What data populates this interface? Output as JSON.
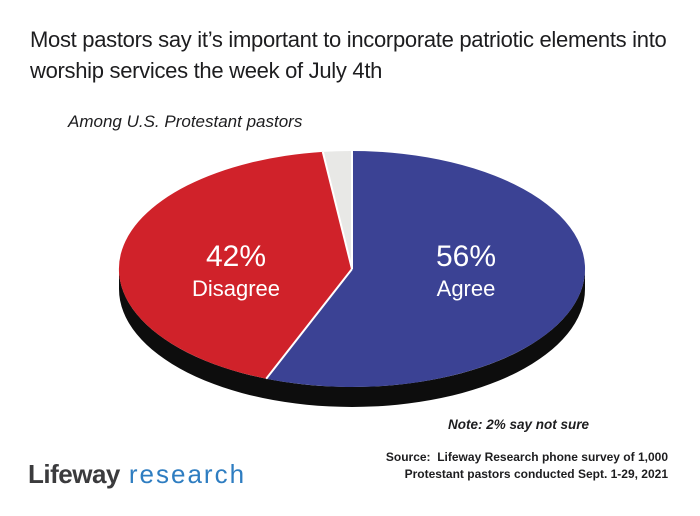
{
  "header": {
    "title": "Most pastors say it’s important to incorporate patriotic elements into worship services the week of July 4th",
    "subtitle": "Among U.S. Protestant pastors"
  },
  "chart_data": {
    "type": "pie",
    "title": "Most pastors say it’s important to incorporate patriotic elements into worship services the week of July 4th",
    "subtitle": "Among U.S. Protestant pastors",
    "style": "3d-ellipse",
    "start_angle_deg": 0,
    "direction": "clockwise",
    "depth_color": "#0D0D0D",
    "separator_color": "#FFFFFF",
    "label_color": "#FFFFFF",
    "slices": [
      {
        "label": "Agree",
        "value": 56,
        "display": "56%",
        "color": "#3B4294",
        "show_label": true
      },
      {
        "label": "Disagree",
        "value": 42,
        "display": "42%",
        "color": "#D0222A",
        "show_label": true
      },
      {
        "label": "Not sure",
        "value": 2,
        "display": "2%",
        "color": "#E8E8E6",
        "show_label": false
      }
    ],
    "note": "Note: 2% say not sure"
  },
  "note": "Note: 2% say not sure",
  "source": {
    "line1": "Source:  Lifeway Research phone survey of 1,000",
    "line2": "Protestant pastors conducted Sept. 1-29, 2021"
  },
  "logo": {
    "part1": "Lifeway",
    "part2": "research",
    "part1_color": "#3B3B3D",
    "part2_color": "#2E7DC1"
  }
}
